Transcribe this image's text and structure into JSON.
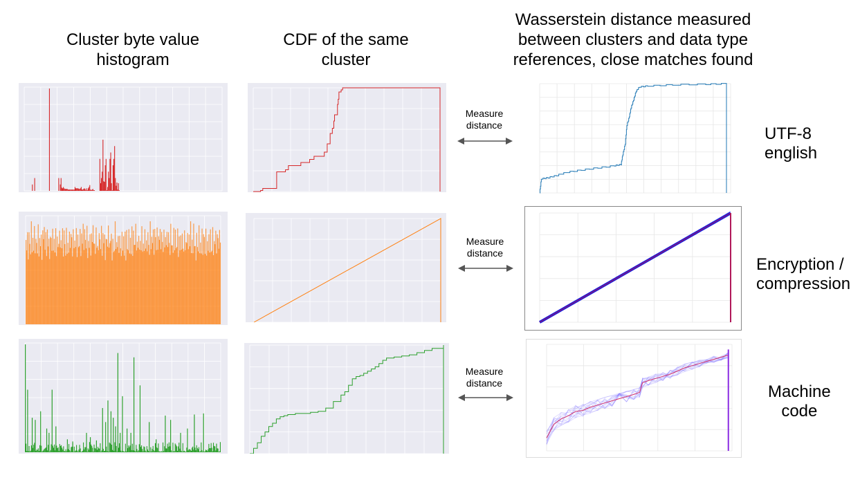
{
  "headers": {
    "histogram": "Cluster byte value\nhistogram",
    "cdf": "CDF of the same\ncluster",
    "wasserstein": "Wasserstein distance measured\nbetween clusters and data type\nreferences, close matches found"
  },
  "measure_label": "Measure\ndistance",
  "rows": [
    {
      "label": "UTF-8\nenglish",
      "color": "#d62728",
      "ref_color": "#1f77b4"
    },
    {
      "label": "Encryption /\ncompression",
      "color": "#ff7f0e",
      "ref_color": "#0000cc"
    },
    {
      "label": "Machine\ncode",
      "color": "#2ca02c",
      "ref_color": "#5b3fd6"
    }
  ],
  "chart_data": [
    {
      "type": "bar",
      "row": "UTF-8 english",
      "x": [
        10,
        13,
        32,
        44,
        46,
        47,
        48,
        49,
        50,
        51,
        52,
        53,
        54,
        55,
        56,
        57,
        58,
        59,
        60,
        61,
        62,
        63,
        64,
        65,
        66,
        67,
        68,
        69,
        70,
        71,
        72,
        73,
        74,
        75,
        76,
        77,
        78,
        79,
        80,
        81,
        82,
        83,
        84,
        85,
        86,
        87,
        88,
        89,
        90,
        97,
        98,
        99,
        100,
        101,
        102,
        103,
        104,
        105,
        106,
        107,
        108,
        109,
        110,
        111,
        112,
        113,
        114,
        115,
        116,
        117,
        118,
        119,
        120,
        121,
        122
      ],
      "values": [
        0.01,
        0.02,
        0.16,
        0.02,
        0.01,
        0.02,
        0.005,
        0.004,
        0.006,
        0.004,
        0.003,
        0.003,
        0.003,
        0.003,
        0.002,
        0.002,
        0.002,
        0.002,
        0.002,
        0.002,
        0.002,
        0.002,
        0.002,
        0.006,
        0.004,
        0.004,
        0.004,
        0.004,
        0.003,
        0.003,
        0.004,
        0.006,
        0.002,
        0.002,
        0.003,
        0.004,
        0.003,
        0.001,
        0.004,
        0.001,
        0.004,
        0.006,
        0.009,
        0.002,
        0.001,
        0.002,
        0.003,
        0.001,
        0.001,
        0.05,
        0.012,
        0.02,
        0.03,
        0.08,
        0.015,
        0.014,
        0.04,
        0.05,
        0.001,
        0.006,
        0.03,
        0.02,
        0.05,
        0.06,
        0.012,
        0.001,
        0.04,
        0.05,
        0.07,
        0.02,
        0.008,
        0.013,
        0.002,
        0.012,
        0.001
      ]
    },
    {
      "type": "line",
      "row": "UTF-8 english",
      "x": [
        0,
        10,
        13,
        32,
        44,
        48,
        65,
        77,
        83,
        97,
        101,
        105,
        108,
        110,
        111,
        115,
        116,
        117,
        120,
        122,
        255
      ],
      "y": [
        0.0,
        0.01,
        0.03,
        0.19,
        0.21,
        0.25,
        0.28,
        0.31,
        0.34,
        0.38,
        0.46,
        0.56,
        0.61,
        0.68,
        0.74,
        0.84,
        0.89,
        0.96,
        0.98,
        1.0,
        1.0
      ]
    },
    {
      "type": "line",
      "row": "UTF-8 english",
      "xlim": [
        0,
        230
      ],
      "ylim": [
        0,
        1
      ],
      "x": [
        0,
        2,
        10,
        20,
        32,
        50,
        70,
        90,
        98,
        100,
        103,
        105,
        108,
        110,
        113,
        116,
        120,
        130,
        160,
        200,
        225
      ],
      "y": [
        0.0,
        0.13,
        0.14,
        0.16,
        0.19,
        0.21,
        0.23,
        0.25,
        0.26,
        0.35,
        0.45,
        0.62,
        0.7,
        0.78,
        0.85,
        0.93,
        0.97,
        0.98,
        0.99,
        0.995,
        1.0
      ]
    },
    {
      "type": "bar",
      "row": "Encryption / compression",
      "x_range": [
        0,
        255
      ],
      "values": [
        0.82,
        0.71,
        0.94,
        0.66,
        0.9,
        0.78,
        0.73,
        0.97,
        0.69,
        0.85,
        0.74,
        0.92,
        0.67,
        0.88,
        0.79,
        0.72,
        0.95,
        0.7,
        0.83,
        0.76,
        0.91,
        0.68,
        0.86,
        0.77,
        0.99,
        0.73,
        0.84,
        0.7,
        0.93,
        0.75,
        0.81,
        0.66,
        0.89,
        0.78,
        0.72,
        0.96,
        0.71,
        0.85,
        0.74,
        0.9,
        0.68,
        0.87,
        0.8,
        0.73,
        0.94,
        0.7,
        0.82,
        0.77,
        0.92,
        0.67,
        0.88,
        0.76,
        0.71,
        0.97,
        0.69,
        0.84,
        0.75,
        0.91,
        0.72,
        0.86,
        0.79,
        0.68,
        0.93,
        0.74
      ],
      "ylim": [
        0,
        1
      ]
    },
    {
      "type": "line",
      "row": "Encryption / compression",
      "x": [
        0,
        255,
        255
      ],
      "y": [
        0.0,
        1.0,
        0.0
      ]
    },
    {
      "type": "line",
      "row": "Encryption / compression",
      "xlim": [
        0,
        255
      ],
      "ylim": [
        0,
        1
      ],
      "x": [
        0,
        255
      ],
      "y": [
        0.0,
        1.0
      ]
    },
    {
      "type": "bar",
      "row": "Machine code",
      "x_range": [
        0,
        255
      ],
      "spikes_x": [
        0,
        3,
        9,
        13,
        20,
        28,
        31,
        35,
        40,
        55,
        62,
        80,
        85,
        93,
        101,
        105,
        108,
        112,
        115,
        118,
        121,
        124,
        127,
        133,
        138,
        142,
        150,
        162,
        171,
        183,
        190,
        203,
        212,
        221,
        233,
        250
      ],
      "spikes_y": [
        1.0,
        0.58,
        0.32,
        0.3,
        0.38,
        0.22,
        0.18,
        0.58,
        0.24,
        0.12,
        0.1,
        0.18,
        0.14,
        0.11,
        0.41,
        0.28,
        0.48,
        0.38,
        0.32,
        0.24,
        0.92,
        0.18,
        0.52,
        0.22,
        0.18,
        0.88,
        0.62,
        0.28,
        0.12,
        0.34,
        0.3,
        0.18,
        0.22,
        0.35,
        0.36,
        0.08
      ],
      "ylim": [
        0,
        1
      ]
    },
    {
      "type": "line",
      "row": "Machine code",
      "x": [
        0,
        5,
        10,
        15,
        20,
        25,
        30,
        35,
        40,
        45,
        50,
        60,
        70,
        80,
        90,
        100,
        110,
        120,
        125,
        130,
        135,
        140,
        145,
        150,
        155,
        160,
        165,
        170,
        175,
        180,
        190,
        200,
        210,
        220,
        230,
        240,
        255
      ],
      "y": [
        0.0,
        0.05,
        0.1,
        0.16,
        0.2,
        0.25,
        0.28,
        0.32,
        0.34,
        0.35,
        0.36,
        0.37,
        0.37,
        0.38,
        0.39,
        0.42,
        0.48,
        0.54,
        0.57,
        0.63,
        0.69,
        0.71,
        0.72,
        0.74,
        0.76,
        0.78,
        0.8,
        0.83,
        0.86,
        0.88,
        0.89,
        0.9,
        0.91,
        0.93,
        0.95,
        0.97,
        1.0
      ]
    },
    {
      "type": "line",
      "row": "Machine code",
      "xlim": [
        0,
        255
      ],
      "ylim": [
        0,
        1
      ],
      "x": [
        0,
        10,
        20,
        30,
        40,
        50,
        60,
        70,
        80,
        90,
        100,
        110,
        120,
        128,
        132,
        140,
        150,
        160,
        170,
        180,
        190,
        200,
        210,
        220,
        230,
        240,
        250
      ],
      "y": [
        0.12,
        0.25,
        0.3,
        0.33,
        0.37,
        0.38,
        0.41,
        0.43,
        0.45,
        0.47,
        0.49,
        0.51,
        0.53,
        0.55,
        0.64,
        0.66,
        0.68,
        0.7,
        0.72,
        0.75,
        0.78,
        0.8,
        0.82,
        0.84,
        0.86,
        0.88,
        0.9
      ]
    }
  ]
}
